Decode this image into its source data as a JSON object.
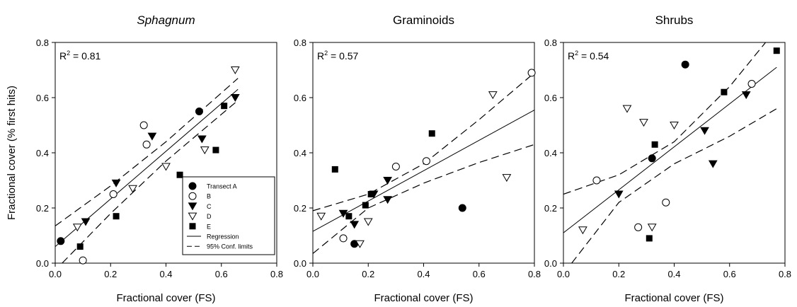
{
  "figure": {
    "legend": {
      "entries": [
        {
          "label": "Transect A",
          "marker": "circle-filled"
        },
        {
          "label": "B",
          "marker": "circle-open"
        },
        {
          "label": "C",
          "marker": "triangle-down-filled"
        },
        {
          "label": "D",
          "marker": "triangle-down-open"
        },
        {
          "label": "E",
          "marker": "square-filled"
        },
        {
          "label": "Regression",
          "line": "solid"
        },
        {
          "label": "95% Conf. limits",
          "line": "dashed"
        }
      ]
    }
  },
  "chart_data": [
    {
      "type": "scatter",
      "title": "Sphagnum",
      "title_italic": true,
      "xlabel": "Fractional cover (FS)",
      "ylabel": "Fractional cover (% first hits)",
      "r2_prefix": "R",
      "r2_sup": "2",
      "r2_value": " = 0.81",
      "xlim": [
        0,
        0.8
      ],
      "ylim": [
        0,
        0.8
      ],
      "xticks": [
        "0.0",
        "0.2",
        "0.4",
        "0.6",
        "0.8"
      ],
      "yticks": [
        "0.0",
        "0.2",
        "0.4",
        "0.6",
        "0.8"
      ],
      "series": [
        {
          "name": "Transect A",
          "marker": "circle-filled",
          "points": [
            [
              0.02,
              0.08
            ],
            [
              0.52,
              0.55
            ]
          ]
        },
        {
          "name": "B",
          "marker": "circle-open",
          "points": [
            [
              0.1,
              0.01
            ],
            [
              0.21,
              0.25
            ],
            [
              0.32,
              0.5
            ],
            [
              0.33,
              0.43
            ]
          ]
        },
        {
          "name": "C",
          "marker": "triangle-down-filled",
          "points": [
            [
              0.11,
              0.15
            ],
            [
              0.22,
              0.29
            ],
            [
              0.35,
              0.46
            ],
            [
              0.53,
              0.45
            ],
            [
              0.65,
              0.6
            ]
          ]
        },
        {
          "name": "D",
          "marker": "triangle-down-open",
          "points": [
            [
              0.08,
              0.13
            ],
            [
              0.28,
              0.27
            ],
            [
              0.4,
              0.35
            ],
            [
              0.54,
              0.41
            ],
            [
              0.65,
              0.7
            ]
          ]
        },
        {
          "name": "E",
          "marker": "square-filled",
          "points": [
            [
              0.09,
              0.06
            ],
            [
              0.22,
              0.17
            ],
            [
              0.45,
              0.32
            ],
            [
              0.58,
              0.41
            ],
            [
              0.61,
              0.57
            ]
          ]
        }
      ],
      "regression": [
        [
          0.0,
          0.06
        ],
        [
          0.66,
          0.63
        ]
      ],
      "conf_upper": [
        [
          0.0,
          0.135
        ],
        [
          0.2,
          0.28
        ],
        [
          0.4,
          0.44
        ],
        [
          0.66,
          0.67
        ]
      ],
      "conf_lower": [
        [
          0.025,
          0.0
        ],
        [
          0.2,
          0.18
        ],
        [
          0.4,
          0.37
        ],
        [
          0.66,
          0.59
        ]
      ],
      "show_legend": true
    },
    {
      "type": "scatter",
      "title": "Graminoids",
      "title_italic": false,
      "xlabel": "Fractional cover (FS)",
      "ylabel": "",
      "r2_prefix": "R",
      "r2_sup": "2",
      "r2_value": " = 0.57",
      "xlim": [
        0,
        0.8
      ],
      "ylim": [
        0,
        0.8
      ],
      "xticks": [
        "0.0",
        "0.2",
        "0.4",
        "0.6",
        "0.8"
      ],
      "yticks": [
        "0.0",
        "0.2",
        "0.4",
        "0.6",
        "0.8"
      ],
      "series": [
        {
          "name": "Transect A",
          "marker": "circle-filled",
          "points": [
            [
              0.15,
              0.07
            ],
            [
              0.54,
              0.2
            ]
          ]
        },
        {
          "name": "B",
          "marker": "circle-open",
          "points": [
            [
              0.11,
              0.09
            ],
            [
              0.3,
              0.35
            ],
            [
              0.41,
              0.37
            ],
            [
              0.79,
              0.69
            ]
          ]
        },
        {
          "name": "C",
          "marker": "triangle-down-filled",
          "points": [
            [
              0.11,
              0.18
            ],
            [
              0.15,
              0.14
            ],
            [
              0.22,
              0.25
            ],
            [
              0.27,
              0.23
            ],
            [
              0.27,
              0.3
            ]
          ]
        },
        {
          "name": "D",
          "marker": "triangle-down-open",
          "points": [
            [
              0.03,
              0.17
            ],
            [
              0.17,
              0.07
            ],
            [
              0.2,
              0.15
            ],
            [
              0.65,
              0.61
            ],
            [
              0.7,
              0.31
            ]
          ]
        },
        {
          "name": "E",
          "marker": "square-filled",
          "points": [
            [
              0.08,
              0.34
            ],
            [
              0.13,
              0.17
            ],
            [
              0.19,
              0.21
            ],
            [
              0.21,
              0.25
            ],
            [
              0.43,
              0.47
            ]
          ]
        }
      ],
      "regression": [
        [
          0.0,
          0.115
        ],
        [
          0.8,
          0.555
        ]
      ],
      "conf_upper": [
        [
          0.0,
          0.19
        ],
        [
          0.2,
          0.25
        ],
        [
          0.4,
          0.36
        ],
        [
          0.6,
          0.52
        ],
        [
          0.8,
          0.69
        ]
      ],
      "conf_lower": [
        [
          0.0,
          0.035
        ],
        [
          0.2,
          0.2
        ],
        [
          0.4,
          0.29
        ],
        [
          0.6,
          0.365
        ],
        [
          0.8,
          0.43
        ]
      ],
      "show_legend": false
    },
    {
      "type": "scatter",
      "title": "Shrubs",
      "title_italic": false,
      "xlabel": "Fractional cover (FS)",
      "ylabel": "",
      "r2_prefix": "R",
      "r2_sup": "2",
      "r2_value": " = 0.54",
      "xlim": [
        0,
        0.8
      ],
      "ylim": [
        0,
        0.8
      ],
      "xticks": [
        "0.0",
        "0.2",
        "0.4",
        "0.6",
        "0.8"
      ],
      "yticks": [
        "0.0",
        "0.2",
        "0.4",
        "0.6",
        "0.8"
      ],
      "series": [
        {
          "name": "Transect A",
          "marker": "circle-filled",
          "points": [
            [
              0.32,
              0.38
            ],
            [
              0.44,
              0.72
            ]
          ]
        },
        {
          "name": "B",
          "marker": "circle-open",
          "points": [
            [
              0.12,
              0.3
            ],
            [
              0.27,
              0.13
            ],
            [
              0.37,
              0.22
            ],
            [
              0.68,
              0.65
            ]
          ]
        },
        {
          "name": "C",
          "marker": "triangle-down-filled",
          "points": [
            [
              0.2,
              0.25
            ],
            [
              0.51,
              0.48
            ],
            [
              0.54,
              0.36
            ],
            [
              0.66,
              0.61
            ]
          ]
        },
        {
          "name": "D",
          "marker": "triangle-down-open",
          "points": [
            [
              0.07,
              0.12
            ],
            [
              0.23,
              0.56
            ],
            [
              0.29,
              0.51
            ],
            [
              0.32,
              0.13
            ],
            [
              0.4,
              0.5
            ]
          ]
        },
        {
          "name": "E",
          "marker": "square-filled",
          "points": [
            [
              0.31,
              0.09
            ],
            [
              0.33,
              0.43
            ],
            [
              0.58,
              0.62
            ],
            [
              0.77,
              0.77
            ]
          ]
        }
      ],
      "regression": [
        [
          0.0,
          0.11
        ],
        [
          0.77,
          0.71
        ]
      ],
      "conf_upper": [
        [
          0.0,
          0.25
        ],
        [
          0.2,
          0.32
        ],
        [
          0.4,
          0.44
        ],
        [
          0.6,
          0.64
        ],
        [
          0.73,
          0.8
        ]
      ],
      "conf_lower": [
        [
          0.03,
          0.0
        ],
        [
          0.2,
          0.22
        ],
        [
          0.4,
          0.36
        ],
        [
          0.6,
          0.46
        ],
        [
          0.77,
          0.56
        ]
      ],
      "show_legend": false
    }
  ]
}
